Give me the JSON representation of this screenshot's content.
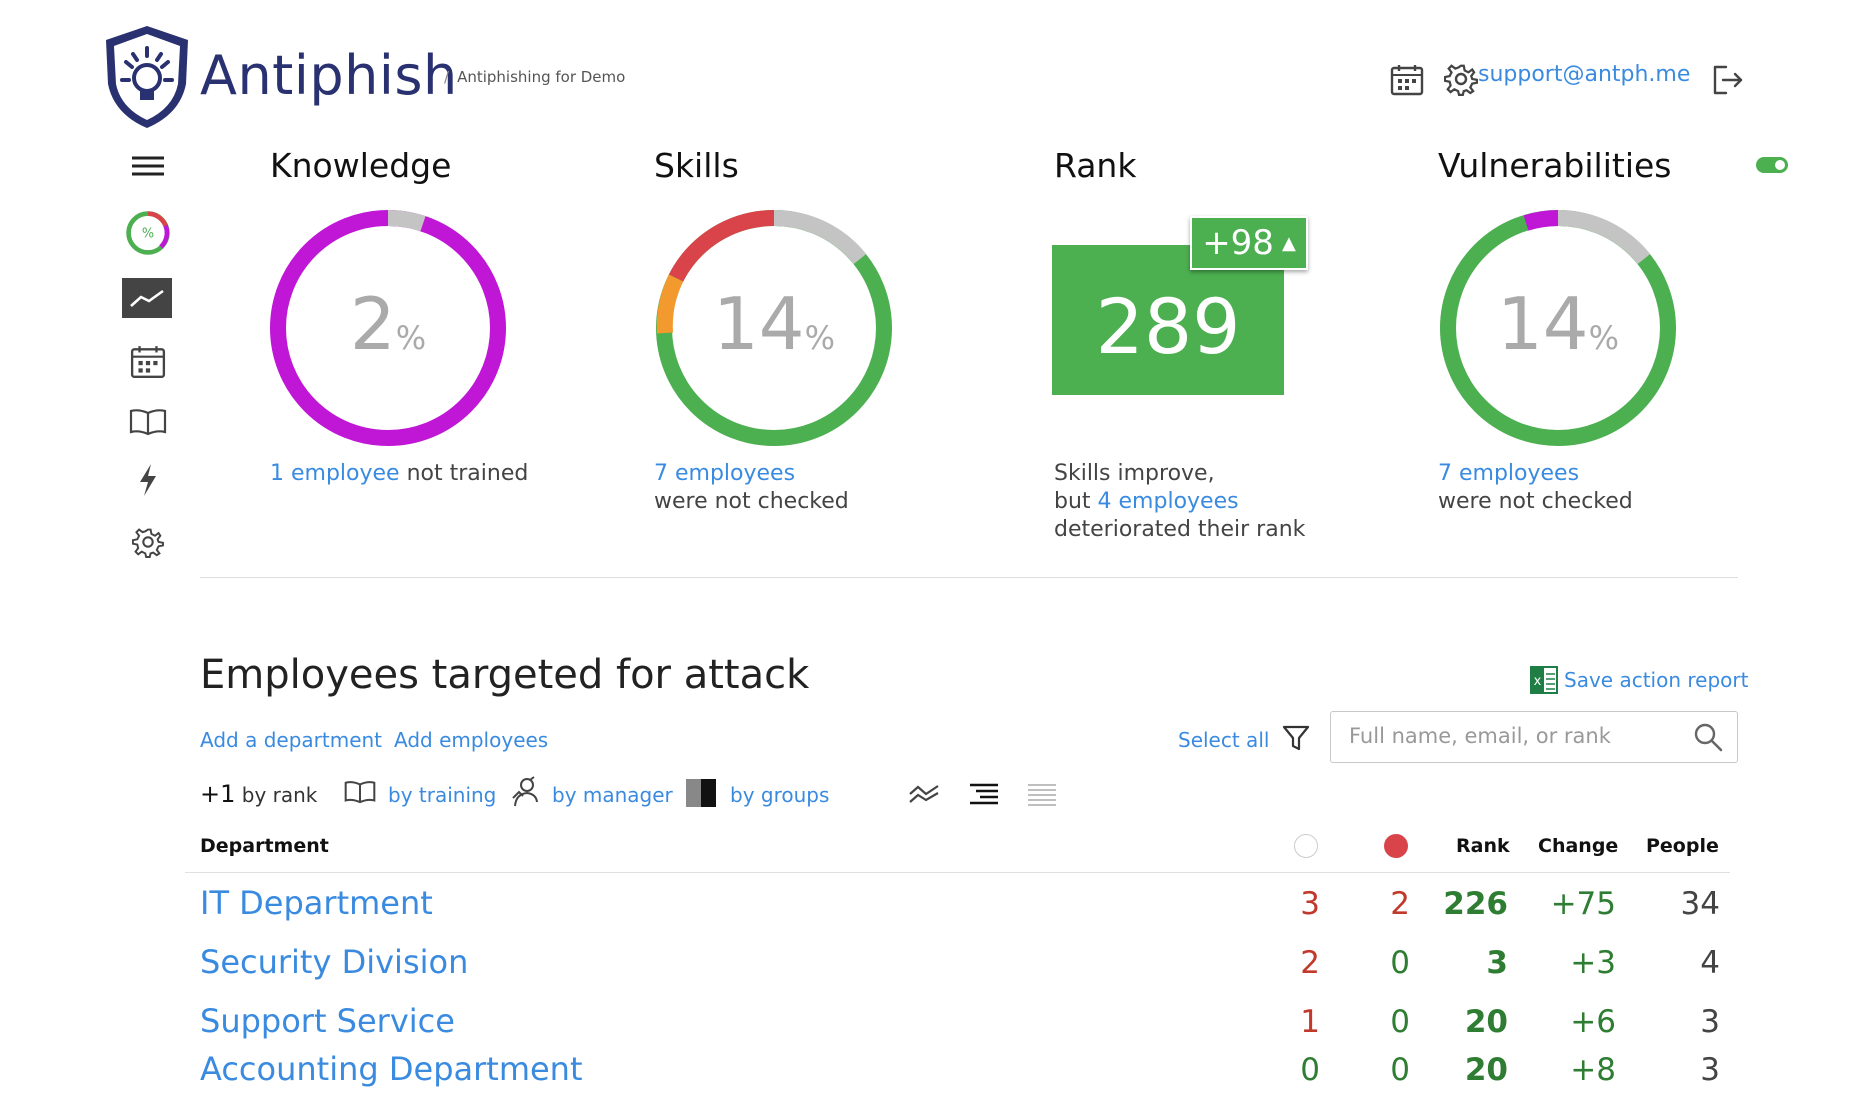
{
  "header": {
    "brand": "Antiphish",
    "breadcrumb_sep": "/",
    "breadcrumb": "Antiphishing for Demo",
    "support_email": "support@antph.me"
  },
  "sidebar": {
    "items": [
      "menu",
      "dashboard",
      "analytics",
      "calendar",
      "courses",
      "attacks",
      "settings"
    ],
    "active": "analytics"
  },
  "metrics": {
    "knowledge": {
      "title": "Knowledge",
      "value": "2",
      "unit": "%",
      "link": "1 employee",
      "note": "not trained"
    },
    "skills": {
      "title": "Skills",
      "value": "14",
      "unit": "%",
      "link": "7 employees",
      "note": "were not checked"
    },
    "rank": {
      "title": "Rank",
      "value": "289",
      "change": "+98",
      "change_arrow": "▲",
      "note_line1": "Skills improve,",
      "note_prefix": "but ",
      "link": "4 employees",
      "note_line3": "deteriorated their rank"
    },
    "vulnerabilities": {
      "title": "Vulnerabilities",
      "value": "14",
      "unit": "%",
      "link": "7 employees",
      "note": "were not checked"
    }
  },
  "colors": {
    "brand": "#2a3170",
    "accent": "#3a8be0",
    "green": "#4caf50",
    "magenta": "#c017d6",
    "red": "#d9444a",
    "orange": "#f29a2e",
    "grey": "#c4c4c4"
  },
  "section": {
    "title": "Employees targeted for attack",
    "save_report": "Save action report",
    "add_department": "Add a department",
    "add_employees": "Add employees",
    "select_all": "Select all",
    "search_placeholder": "Full name, email, or rank"
  },
  "filters": {
    "rank_prefix": "+1",
    "rank_label": "by rank",
    "training": "by training",
    "manager": "by manager",
    "groups": "by groups"
  },
  "table": {
    "headers": {
      "department": "Department",
      "rank": "Rank",
      "change": "Change",
      "people": "People"
    },
    "rows": [
      {
        "name": "IT Department",
        "open": "3",
        "failed": "2",
        "rank": "226",
        "change": "+75",
        "people": "34"
      },
      {
        "name": "Security Division",
        "open": "2",
        "failed": "0",
        "rank": "3",
        "change": "+3",
        "people": "4"
      },
      {
        "name": "Support Service",
        "open": "1",
        "failed": "0",
        "rank": "20",
        "change": "+6",
        "people": "3"
      },
      {
        "name": "Accounting Department",
        "open": "0",
        "failed": "0",
        "rank": "20",
        "change": "+8",
        "people": "3"
      }
    ]
  }
}
